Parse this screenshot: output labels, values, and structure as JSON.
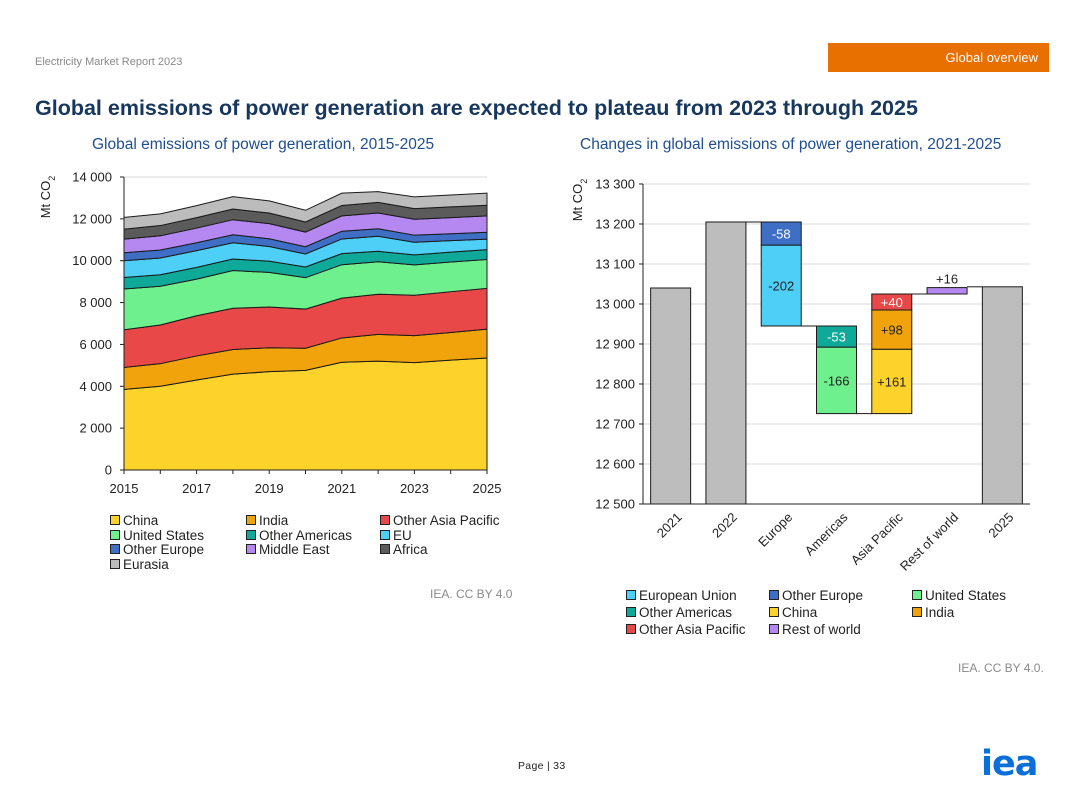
{
  "header": {
    "report_name": "Electricity Market Report 2023",
    "section": "Global overview",
    "headline": "Global emissions of power generation are expected to plateau from 2023 through 2025"
  },
  "footer": {
    "page_label": "Page | 33",
    "logo_text": "iea"
  },
  "left_source": "IEA. CC BY 4.0",
  "right_source": "IEA. CC BY 4.0.",
  "chart_data": [
    {
      "type": "area",
      "stacked": true,
      "title": "Global emissions of power generation, 2015-2025",
      "ylabel": "Mt CO2",
      "xlabel": "",
      "x": [
        2015,
        2016,
        2017,
        2018,
        2019,
        2020,
        2021,
        2022,
        2023,
        2024,
        2025
      ],
      "xticks": [
        "2015",
        "2017",
        "2019",
        "2021",
        "2023",
        "2025"
      ],
      "yticks": [
        "0",
        "2 000",
        "4 000",
        "6 000",
        "8 000",
        "10 000",
        "12 000",
        "14 000"
      ],
      "ylim": [
        0,
        14000
      ],
      "grid": "horizontal",
      "legend_position": "bottom",
      "series": [
        {
          "name": "China",
          "color": "#fdd22a",
          "values": [
            3850,
            4000,
            4300,
            4580,
            4700,
            4760,
            5150,
            5200,
            5130,
            5250,
            5350
          ]
        },
        {
          "name": "India",
          "color": "#f0a30a",
          "values": [
            1050,
            1080,
            1150,
            1180,
            1140,
            1060,
            1160,
            1280,
            1290,
            1320,
            1380
          ]
        },
        {
          "name": "Other Asia Pacific",
          "color": "#e84848",
          "values": [
            1800,
            1850,
            1920,
            1970,
            1950,
            1870,
            1900,
            1920,
            1930,
            1950,
            1950
          ]
        },
        {
          "name": "United States",
          "color": "#6ef08f",
          "values": [
            1950,
            1850,
            1750,
            1800,
            1650,
            1500,
            1600,
            1550,
            1450,
            1420,
            1380
          ]
        },
        {
          "name": "Other Americas",
          "color": "#0fa99a",
          "values": [
            550,
            550,
            560,
            550,
            540,
            510,
            530,
            500,
            480,
            470,
            470
          ]
        },
        {
          "name": "EU",
          "color": "#4dcff7",
          "values": [
            800,
            800,
            800,
            780,
            700,
            620,
            700,
            720,
            600,
            550,
            500
          ]
        },
        {
          "name": "Other Europe",
          "color": "#3f6fc4",
          "values": [
            380,
            380,
            380,
            380,
            370,
            350,
            370,
            360,
            340,
            330,
            330
          ]
        },
        {
          "name": "Middle East",
          "color": "#b488f0",
          "values": [
            650,
            680,
            700,
            720,
            720,
            700,
            730,
            750,
            760,
            770,
            780
          ]
        },
        {
          "name": "Africa",
          "color": "#5b5b5b",
          "values": [
            480,
            490,
            500,
            510,
            510,
            480,
            500,
            510,
            510,
            510,
            510
          ]
        },
        {
          "name": "Eurasia",
          "color": "#bcbcbc",
          "values": [
            560,
            560,
            570,
            590,
            580,
            560,
            590,
            510,
            560,
            570,
            580
          ]
        }
      ]
    },
    {
      "type": "bar",
      "subtype": "waterfall",
      "title": "Changes in global emissions of power generation, 2021-2025",
      "ylabel": "Mt CO2",
      "xlabel": "",
      "ylim": [
        12500,
        13300
      ],
      "yticks": [
        "12 500",
        "12 600",
        "12 700",
        "12 800",
        "12 900",
        "13 000",
        "13 100",
        "13 200",
        "13 300"
      ],
      "grid": "horizontal",
      "legend_position": "bottom",
      "categories": [
        "2021",
        "2022",
        "Europe",
        "Americas",
        "Asia Pacific",
        "Rest of world",
        "2025"
      ],
      "totals": {
        "2021": 13040,
        "2022": 13205,
        "2025": 13043
      },
      "changes": [
        {
          "category": "Europe",
          "series": "Other Europe",
          "value": -58,
          "label": "-58",
          "color": "#3f6fc4"
        },
        {
          "category": "Europe",
          "series": "European Union",
          "value": -202,
          "label": "-202",
          "color": "#4dcff7"
        },
        {
          "category": "Americas",
          "series": "Other Americas",
          "value": -53,
          "label": "-53",
          "color": "#0fa99a"
        },
        {
          "category": "Americas",
          "series": "United States",
          "value": -166,
          "label": "-166",
          "color": "#6ef08f"
        },
        {
          "category": "Asia Pacific",
          "series": "China",
          "value": 161,
          "label": "+161",
          "color": "#fdd22a"
        },
        {
          "category": "Asia Pacific",
          "series": "India",
          "value": 98,
          "label": "+98",
          "color": "#f0a30a"
        },
        {
          "category": "Asia Pacific",
          "series": "Other Asia Pacific",
          "value": 40,
          "label": "+40",
          "color": "#e84848"
        },
        {
          "category": "Rest of world",
          "series": "Rest of world",
          "value": 16,
          "label": "+16",
          "color": "#b488f0"
        }
      ],
      "total_color": "#bdbdbd",
      "legend": [
        {
          "name": "European Union",
          "color": "#4dcff7"
        },
        {
          "name": "Other Europe",
          "color": "#3f6fc4"
        },
        {
          "name": "United States",
          "color": "#6ef08f"
        },
        {
          "name": "Other Americas",
          "color": "#0fa99a"
        },
        {
          "name": "China",
          "color": "#fdd22a"
        },
        {
          "name": "India",
          "color": "#f0a30a"
        },
        {
          "name": "Other Asia Pacific",
          "color": "#e84848"
        },
        {
          "name": "Rest of world",
          "color": "#b488f0"
        }
      ]
    }
  ]
}
